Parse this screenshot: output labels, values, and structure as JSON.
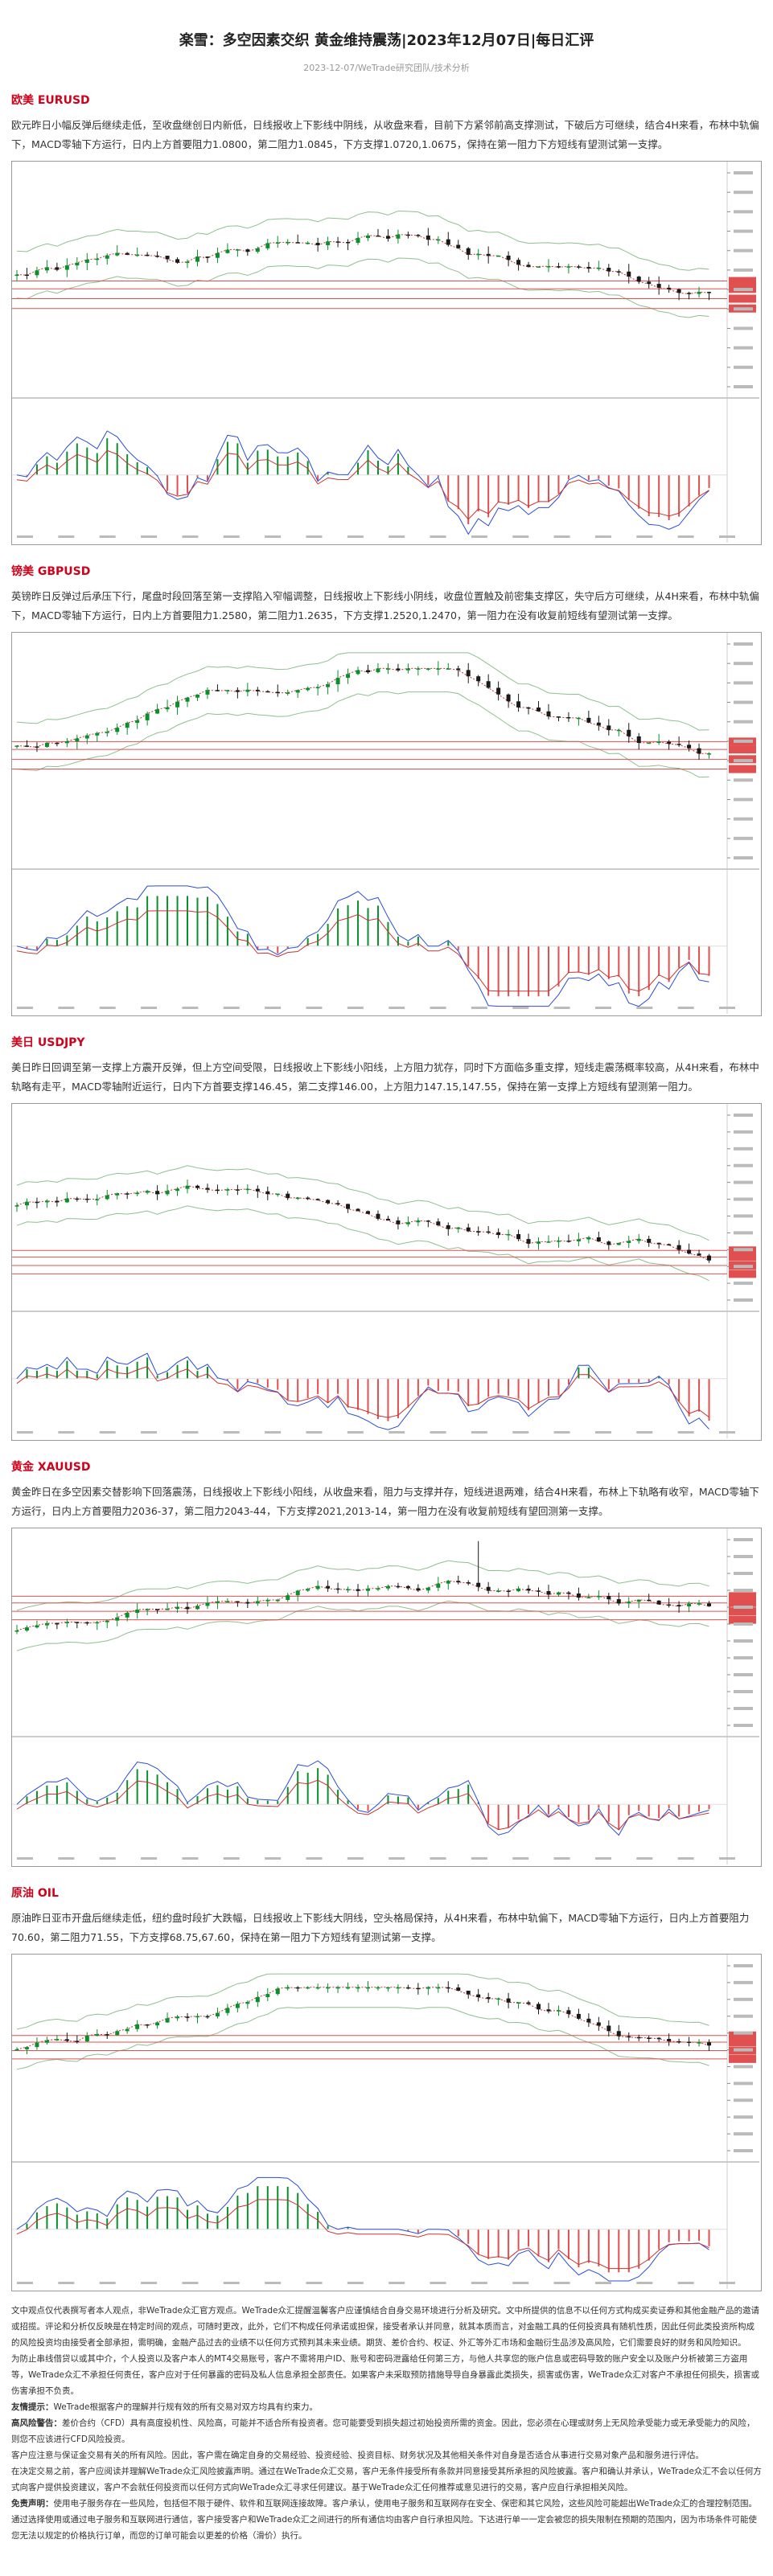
{
  "header": {
    "title": "楽雪：多空因素交织 黄金维持震荡|2023年12月07日|每日汇评",
    "subtitle": "2023-12-07/WeTrade研究团队/技术分析"
  },
  "sections": [
    {
      "heading": "欧美 EURUSD",
      "body": "欧元昨日小幅反弹后继续走低，至收盘继创日内新低，日线报收上下影线中阴线，从收盘来看，目前下方紧邻前高支撑测试，下破后方可继续，结合4H来看，布林中轨偏下，MACD零轴下方运行，日内上方首要阻力1.0800，第二阻力1.0845，下方支撑1.0720,1.0675，保持在第一阻力下方短线有望测试第一支撑。",
      "colors": {
        "bull": "#0a8f2c",
        "bear": "#1a1a1a",
        "ma": "#c83232",
        "band": "#8fbf8f",
        "level": "#e05050"
      }
    },
    {
      "heading": "镑美 GBPUSD",
      "body": "英镑昨日反弹过后承压下行，尾盘时段回落至第一支撑陷入窄幅调整，日线报收上下影线小阴线，收盘位置触及前密集支撑区，失守后方可继续，从4H来看，布林中轨偏下，MACD零轴下方运行，日内上方首要阻力1.2580，第二阻力1.2635，下方支撑1.2520,1.2470，第一阻力在没有收复前短线有望测试第一支撑。",
      "colors": {
        "bull": "#0a8f2c",
        "bear": "#1a1a1a",
        "ma": "#c83232",
        "band": "#8fbf8f",
        "level": "#e05050"
      }
    },
    {
      "heading": "美日 USDJPY",
      "body": "美日昨日回调至第一支撑上方震开反弹，但上方空间受限，日线报收上下影线小阳线，上方阻力犹存，同时下方面临多重支撑，短线走震荡概率较高，从4H来看，布林中轨略有走平，MACD零轴附近运行，日内下方首要支撑146.45，第二支撑146.00，上方阻力147.15,147.55，保持在第一支撑上方短线有望测第一阻力。",
      "colors": {
        "bull": "#0a8f2c",
        "bear": "#1a1a1a",
        "ma": "#c83232",
        "band": "#8fbf8f",
        "level": "#e05050"
      }
    },
    {
      "heading": "黄金 XAUUSD",
      "body": "黄金昨日在多空因素交替影响下回落震荡，日线报收上下影线小阳线，从收盘来看，阻力与支撑并存，短线进退两难，结合4H来看，布林上下轨略有收窄，MACD零轴下方运行，日内上方首要阻力2036-37，第二阻力2043-44，下方支撑2021,2013-14，第一阻力在没有收复前短线有望回测第一支撑。",
      "colors": {
        "bull": "#0a8f2c",
        "bear": "#1a1a1a",
        "ma": "#c83232",
        "band": "#8fbf8f",
        "level": "#e05050"
      }
    },
    {
      "heading": "原油 OIL",
      "body": "原油昨日亚市开盘后继续走低，纽约盘时段扩大跌幅，日线报收上下影线大阴线，空头格局保持，从4H来看，布林中轨偏下，MACD零轴下方运行，日内上方首要阻力70.60，第二阻力71.55，下方支撑68.75,67.60，保持在第一阻力下方短线有望测试第一支撑。",
      "colors": {
        "bull": "#0a8f2c",
        "bear": "#1a1a1a",
        "ma": "#c83232",
        "band": "#8fbf8f",
        "level": "#e05050"
      }
    }
  ],
  "disclaimer": {
    "p1": "文中观点仅代表撰写者本人观点，非WeTrade众汇官方观点。WeTrade众汇提醒温馨客户应谨慎结合自身交易环境进行分析及研究。文中所提供的信息不以任何方式构成买卖证券和其他金融产品的邀请或招揽。评论和分析仅反映是在特定时间的观点，可随时更改，此外，它们不构成任何承诺或担保，接受者承认并同意，就其本质而言，对金融工具的任何投资具有随机性质，因此任何此类投资所构成的风险投资均由接受者全部承担，需明确，金融产品过去的业绩不以任何方式预判其未来业绩。期货、差价合约、权证、外汇等外汇市场和金融衍生品涉及高风险，它们需要良好的财务和风险知识。",
    "p2": "为防止串线借贷以或其中介，个人投资以及客户本人的MT4交易账号，客户不需将用户ID、账号和密码泄露给任何第三方，与他人共享您的账户信息或密码导致的账户安全以及账户分析被第三方盗用等，WeTrade众汇不承担任何责任，客户应对于任何暴露的密码及私人信息承担全部责任。如果客户未采取预防措施导导自身暴露此类损失，损害或伤害，WeTrade众汇对客户不承担任何损失，损害或伤害承担不负责。",
    "p3_label": "友情提示：",
    "p3": "WeTrade根据客户的理解并行规有效的所有交易对双方均具有约束力。",
    "p4_label": "高风险警告：",
    "p4": "差价合约（CFD）具有高度投机性、风险高，可能并不适合所有投资者。您可能要受到损失超过初始投资所需的资金。因此，您必须在心理或财务上无风险承受能力或无承受能力的风险，则您不应该进行CFD风险投资。",
    "p5": "客户应注意与保证金交易有关的所有风险。因此，客户需在确定自身的交易经验、投资经验、投资目标、财务状况及其他相关条件对自身是否适合从事进行交易对象产品和服务进行评估。",
    "p6": "在决定交易之前，客户应阅读并理解WeTrade众汇风险披露声明。通过在WeTrade众汇交易，客户无条件接受所有条款并同意接受其所承担的风险披露。客户和确认并承认，WeTrade众汇不会以任何方式向客户提供投资建议，客户不会就任何投资而以任何方式向WeTrade众汇寻求任何建议。基于WeTrade众汇任何推荐或意见进行的交易，客户应自行承担相关风险。",
    "p7_label": "免责声明：",
    "p7": "使用电子服务存在一些风险，包括但不限于硬件、软件和互联网连接故障。客户承认，使用电子服务和互联网存在安全、保密和其它风险，这些风险可能超出WeTrade众汇的合理控制范围。",
    "p8": "通过选择使用或通过电子服务和互联网进行通信，客户接受客户和WeTrade众汇之间进行的所有通信均由客户自行承担风险。下达进行单一一定会被您的损失限制在预期的范围内，因为市场条件可能使您无法以规定的价格执行订单，而您的订单可能会以更差的价格（滑价）执行。"
  }
}
